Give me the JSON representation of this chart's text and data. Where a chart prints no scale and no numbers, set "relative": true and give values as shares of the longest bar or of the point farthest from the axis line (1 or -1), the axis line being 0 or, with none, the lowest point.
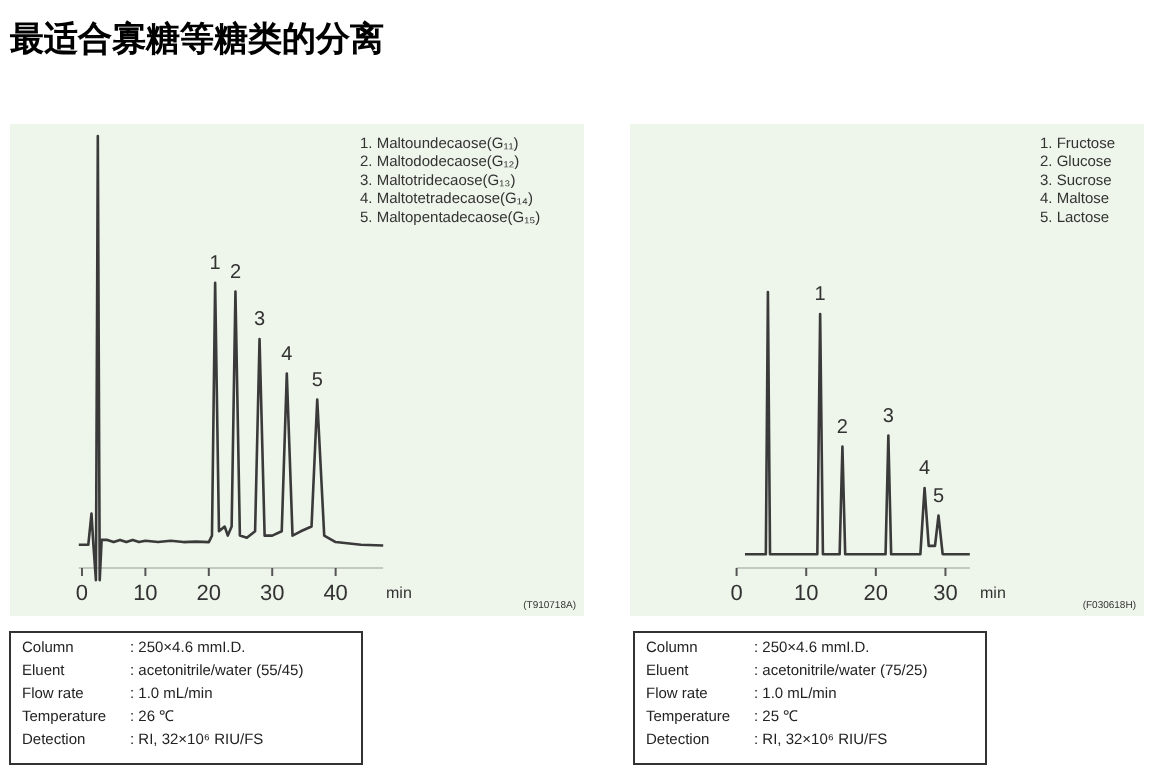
{
  "chart_data": [
    {
      "type": "line",
      "title": "最适合寡糖等糖类的分离",
      "relative": true,
      "xlabel": "min",
      "xlim": [
        -0.5,
        47.5
      ],
      "xticks": [
        0,
        10,
        20,
        30,
        40
      ],
      "tick_labels": "x",
      "series": [
        {
          "color": "#3a3a3a",
          "x": [
            -0.5,
            1.0,
            1.5,
            1.8,
            2.2,
            2.5,
            2.8,
            3.1,
            4,
            5,
            6,
            7,
            8,
            9,
            10,
            12,
            14,
            16,
            18,
            20,
            20.5,
            21.0,
            21.6,
            22.5,
            23,
            23.6,
            24.2,
            24.9,
            26,
            27.3,
            28.0,
            28.8,
            30,
            31.5,
            32.3,
            33.2,
            34.5,
            36.2,
            37.1,
            38.2,
            40,
            44,
            47.5
          ],
          "values": [
            0.054,
            0.054,
            0.126,
            0.054,
            -0.028,
            1.0,
            -0.028,
            0.065,
            0.065,
            0.06,
            0.065,
            0.06,
            0.065,
            0.06,
            0.063,
            0.06,
            0.063,
            0.06,
            0.061,
            0.06,
            0.075,
            0.66,
            0.085,
            0.096,
            0.075,
            0.096,
            0.64,
            0.075,
            0.07,
            0.085,
            0.53,
            0.075,
            0.075,
            0.085,
            0.45,
            0.075,
            0.085,
            0.096,
            0.39,
            0.075,
            0.06,
            0.054,
            0.052
          ]
        }
      ],
      "annotations": [
        "1. Maltoundecaose(G₁₁)",
        "2. Maltododecaose(G₁₂)",
        "3. Maltotridecaose(G₁₃)",
        "4. Maltotetradecaose(G₁₄)",
        "5. Maltopentadecaose(G₁₅)",
        {
          "text": "1",
          "x": 21.0,
          "y": 0.66
        },
        {
          "text": "2",
          "x": 24.2,
          "y": 0.64
        },
        {
          "text": "3",
          "x": 28.0,
          "y": 0.53
        },
        {
          "text": "4",
          "x": 32.3,
          "y": 0.45
        },
        {
          "text": "5",
          "x": 37.1,
          "y": 0.39
        },
        "(T910718A)"
      ]
    },
    {
      "type": "line",
      "relative": true,
      "xlabel": "min",
      "xlim": [
        0,
        33.5
      ],
      "xticks": [
        0,
        10,
        20,
        30
      ],
      "tick_labels": "x",
      "series": [
        {
          "color": "#3a3a3a",
          "x": [
            1.2,
            4.2,
            4.5,
            4.8,
            6,
            11.6,
            12.0,
            12.4,
            14.8,
            15.2,
            15.6,
            21.4,
            21.8,
            22.2,
            26.4,
            27.0,
            27.6,
            28.5,
            29.0,
            29.6,
            33.5
          ],
          "values": [
            0.05,
            0.05,
            1.0,
            0.05,
            0.05,
            0.05,
            0.92,
            0.05,
            0.05,
            0.44,
            0.05,
            0.05,
            0.48,
            0.05,
            0.05,
            0.29,
            0.08,
            0.08,
            0.19,
            0.05,
            0.05
          ]
        }
      ],
      "annotations": [
        "1. Fructose",
        "2. Glucose",
        "3. Sucrose",
        "4. Maltose",
        "5. Lactose",
        {
          "text": "1",
          "x": 12.0,
          "y": 0.92
        },
        {
          "text": "2",
          "x": 15.2,
          "y": 0.44
        },
        {
          "text": "3",
          "x": 21.8,
          "y": 0.48
        },
        {
          "text": "4",
          "x": 27.0,
          "y": 0.29
        },
        {
          "text": "5",
          "x": 29.0,
          "y": 0.19
        },
        "(F030618H)"
      ]
    },
    {
      "type": "other",
      "annotations": [
        "Column",
        ": 250×4.6 mmI.D.",
        "Eluent",
        ": acetonitrile/water (55/45)",
        "Flow rate",
        ": 1.0 mL/min",
        "Temperature",
        ": 26 ℃",
        "Detection",
        ": RI, 32×10⁶ RIU/FS"
      ]
    },
    {
      "type": "other",
      "annotations": [
        "Column",
        ": 250×4.6 mmI.D.",
        "Eluent",
        ": acetonitrile/water (75/25)",
        "Flow rate",
        ": 1.0 mL/min",
        "Temperature",
        ": 25 ℃",
        "Detection",
        ": RI, 32×10⁶ RIU/FS"
      ]
    }
  ]
}
